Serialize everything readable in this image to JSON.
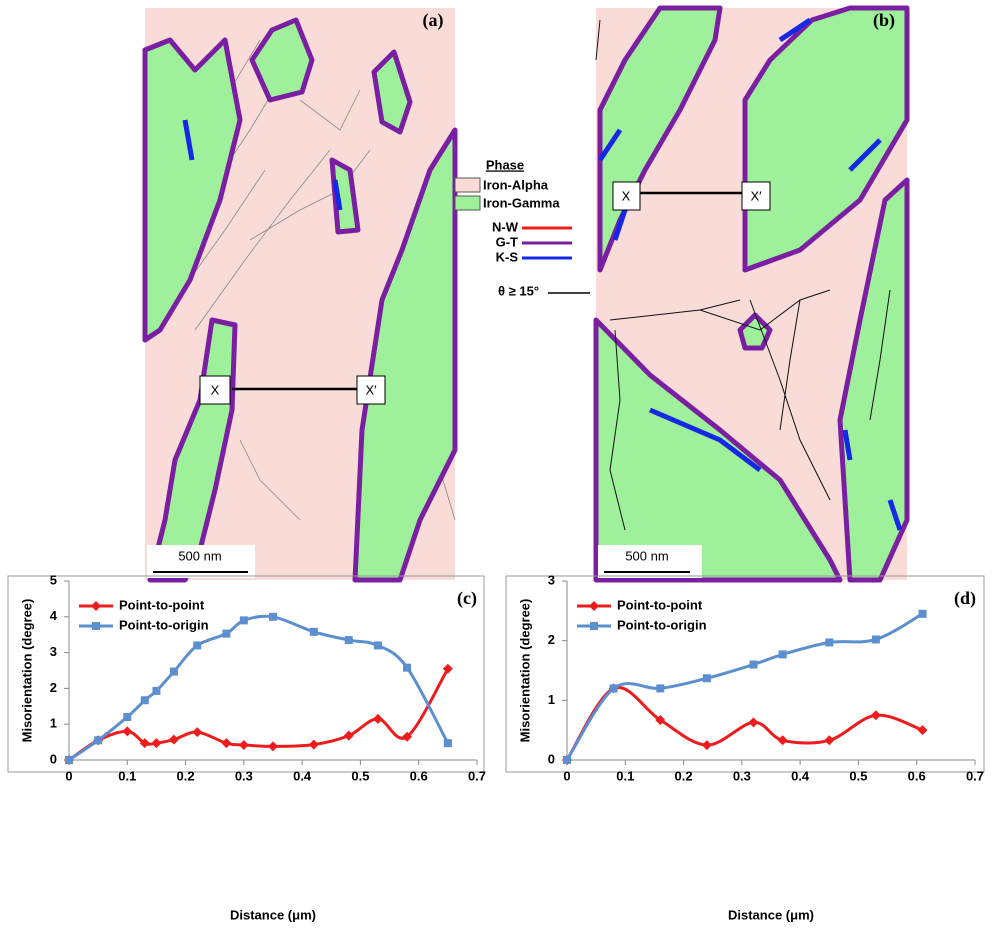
{
  "maps": [
    {
      "label": "(a)",
      "x_label": "X",
      "x_prime_label": "X′",
      "scale": "500 nm"
    },
    {
      "label": "(b)",
      "x_label": "X",
      "x_prime_label": "X′",
      "scale": "500 nm"
    }
  ],
  "map_legend": {
    "title": "Phase",
    "phases": [
      "Iron-Alpha",
      "Iron-Gamma"
    ],
    "boundaries": [
      "N-W",
      "G-T",
      "K-S",
      "θ ≥ 15°"
    ]
  },
  "chart_data": [
    {
      "type": "line",
      "label": "(c)",
      "xlabel": "Distance (μm)",
      "ylabel": "Misorientation (degree)",
      "x": [
        0,
        0.05,
        0.1,
        0.13,
        0.15,
        0.18,
        0.22,
        0.27,
        0.3,
        0.35,
        0.42,
        0.48,
        0.53,
        0.58,
        0.65
      ],
      "series": [
        {
          "name": "Point-to-point",
          "color": "#ee1c1c",
          "marker": "diamond",
          "values": [
            0,
            0.55,
            0.8,
            0.47,
            0.47,
            0.57,
            0.78,
            0.47,
            0.42,
            0.38,
            0.43,
            0.68,
            1.15,
            0.65,
            2.55
          ]
        },
        {
          "name": "Point-to-origin",
          "color": "#5b8fd0",
          "marker": "square",
          "values": [
            0,
            0.55,
            1.2,
            1.67,
            1.93,
            2.47,
            3.2,
            3.53,
            3.9,
            4.0,
            3.58,
            3.35,
            3.2,
            2.58,
            0.47
          ]
        }
      ],
      "xlim": [
        0,
        0.7
      ],
      "xticks": [
        0,
        0.1,
        0.2,
        0.3,
        0.4,
        0.5,
        0.6,
        0.7
      ],
      "ylim": [
        0,
        5
      ],
      "yticks": [
        0,
        1,
        2,
        3,
        4,
        5
      ]
    },
    {
      "type": "line",
      "label": "(d)",
      "xlabel": "Distance (μm)",
      "ylabel": "Misorientation (degree)",
      "x": [
        0,
        0.08,
        0.16,
        0.24,
        0.32,
        0.37,
        0.45,
        0.53,
        0.61
      ],
      "series": [
        {
          "name": "Point-to-point",
          "color": "#ee1c1c",
          "marker": "diamond",
          "values": [
            0,
            1.2,
            0.67,
            0.25,
            0.63,
            0.33,
            0.33,
            0.75,
            0.5
          ]
        },
        {
          "name": "Point-to-origin",
          "color": "#5b8fd0",
          "marker": "square",
          "values": [
            0,
            1.2,
            1.2,
            1.37,
            1.6,
            1.77,
            1.97,
            2.02,
            2.45
          ]
        }
      ],
      "xlim": [
        0,
        0.7
      ],
      "xticks": [
        0,
        0.1,
        0.2,
        0.3,
        0.4,
        0.5,
        0.6,
        0.7
      ],
      "ylim": [
        0,
        3
      ],
      "yticks": [
        0,
        1,
        2,
        3
      ]
    }
  ]
}
